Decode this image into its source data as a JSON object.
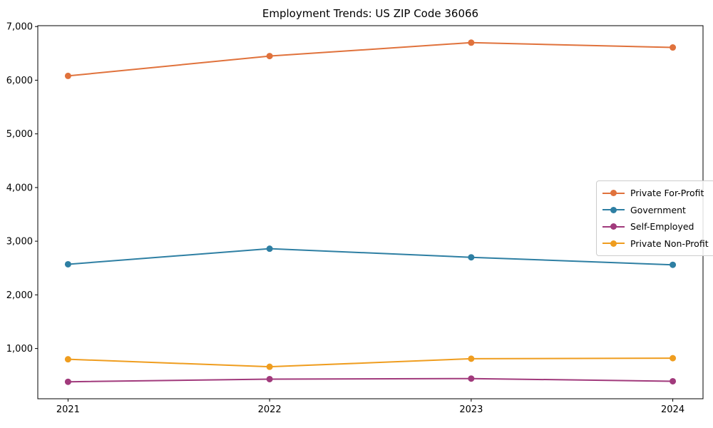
{
  "title": "Employment Trends: US ZIP Code 36066",
  "chart_data": {
    "type": "line",
    "x": [
      2021,
      2022,
      2023,
      2024
    ],
    "x_labels": [
      "2021",
      "2022",
      "2023",
      "2024"
    ],
    "series": [
      {
        "name": "Private For-Profit",
        "color": "#E0723C",
        "values": [
          6080,
          6450,
          6700,
          6610
        ]
      },
      {
        "name": "Government",
        "color": "#2E7FA3",
        "values": [
          2570,
          2860,
          2700,
          2560
        ]
      },
      {
        "name": "Self-Employed",
        "color": "#A13A7C",
        "values": [
          380,
          430,
          440,
          390
        ]
      },
      {
        "name": "Private Non-Profit",
        "color": "#EF9D1F",
        "values": [
          800,
          660,
          810,
          820
        ]
      }
    ],
    "yticks": [
      1000,
      2000,
      3000,
      4000,
      5000,
      6000,
      7000
    ],
    "ytick_labels": [
      "1,000",
      "2,000",
      "3,000",
      "4,000",
      "5,000",
      "6,000",
      "7,000"
    ],
    "ylim": [
      64,
      7016
    ],
    "xlim": [
      2020.85,
      2024.15
    ],
    "grid": false,
    "legend_position": "center right",
    "marker": "o",
    "line_width": 2
  }
}
